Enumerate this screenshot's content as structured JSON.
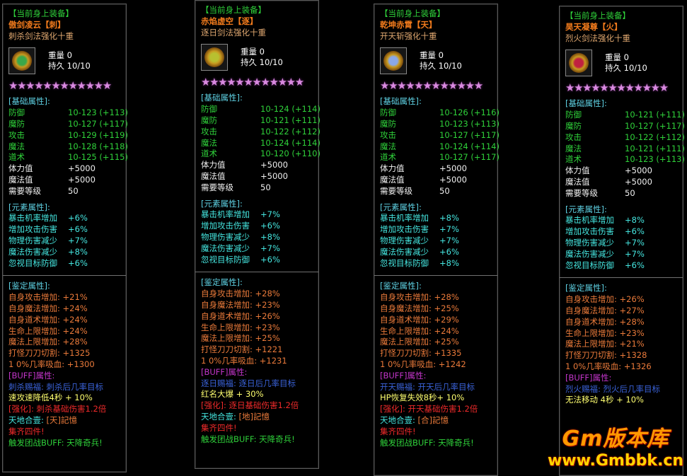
{
  "panels": [
    {
      "header": "【当前身上装备】",
      "name": "傲剑凌云【刺】",
      "subtitle": "刺杀剑法强化十重",
      "gem_color": "#3aa84a",
      "weight_label": "重量",
      "weight": "0",
      "durability_label": "持久",
      "durability": "10/10",
      "stars": 12,
      "base_title": "[基础属性]:",
      "base": [
        {
          "label": "防御",
          "value": "10-123 (+113)"
        },
        {
          "label": "魔防",
          "value": "10-127 (+117)"
        },
        {
          "label": "攻击",
          "value": "10-129 (+119)"
        },
        {
          "label": "魔法",
          "value": "10-128 (+118)"
        },
        {
          "label": "道术",
          "value": "10-125 (+115)"
        }
      ],
      "stats": [
        {
          "label": "体力值",
          "value": "+5000"
        },
        {
          "label": "魔法值",
          "value": "+5000"
        },
        {
          "label": "需要等级",
          "value": "50"
        }
      ],
      "element_title": "[元素属性]:",
      "elements": [
        {
          "label": "暴击机率增加",
          "value": "+6%"
        },
        {
          "label": "增加攻击伤害",
          "value": "+6%"
        },
        {
          "label": "物理伤害减少",
          "value": "+7%"
        },
        {
          "label": "魔法伤害减少",
          "value": "+8%"
        },
        {
          "label": "忽视目标防御",
          "value": "+6%"
        }
      ],
      "ident_title": "[鉴定属性]:",
      "idents": [
        "自身攻击增加: +21%",
        "自身魔法增加: +24%",
        "自身道术增加: +24%",
        "生命上限增加: +24%",
        "魔法上限增加: +28%",
        "打怪刀刀切割: +1325",
        "1 0%几率吸血: +1300"
      ],
      "buff_title": "[BUFF]属性:",
      "blessing": "刺杀赐福: 刺杀后几率目标",
      "effect": "速攻速降低4秒 + 10%",
      "strengthen": "[强化]: 刺杀基础伤害1.2倍",
      "combo_label": "天地合壹: ",
      "combo_value": "[天]記憶",
      "set_text": "集齐四件!",
      "trigger": "触发团战BUFF: 天降奇兵!"
    },
    {
      "header": "【当前身上装备】",
      "name": "赤焰虚空【逐】",
      "subtitle": "逐日剑法强化十重",
      "gem_color": "#b8c030",
      "weight_label": "重量",
      "weight": "0",
      "durability_label": "持久",
      "durability": "10/10",
      "stars": 12,
      "base_title": "[基础属性]:",
      "base": [
        {
          "label": "防御",
          "value": "10-124 (+114)"
        },
        {
          "label": "魔防",
          "value": "10-121 (+111)"
        },
        {
          "label": "攻击",
          "value": "10-122 (+112)"
        },
        {
          "label": "魔法",
          "value": "10-124 (+114)"
        },
        {
          "label": "道术",
          "value": "10-120 (+110)"
        }
      ],
      "stats": [
        {
          "label": "体力值",
          "value": "+5000"
        },
        {
          "label": "魔法值",
          "value": "+5000"
        },
        {
          "label": "需要等级",
          "value": "50"
        }
      ],
      "element_title": "[元素属性]:",
      "elements": [
        {
          "label": "暴击机率增加",
          "value": "+7%"
        },
        {
          "label": "增加攻击伤害",
          "value": "+6%"
        },
        {
          "label": "物理伤害减少",
          "value": "+8%"
        },
        {
          "label": "魔法伤害减少",
          "value": "+7%"
        },
        {
          "label": "忽视目标防御",
          "value": "+6%"
        }
      ],
      "ident_title": "[鉴定属性]:",
      "idents": [
        "自身攻击增加: +28%",
        "自身魔法增加: +23%",
        "自身道术增加: +26%",
        "生命上限增加: +23%",
        "魔法上限增加: +25%",
        "打怪刀刀切割: +1221",
        "1 0%几率吸血: +1231"
      ],
      "buff_title": "[BUFF]属性:",
      "blessing": "逐日赐福: 逐日后几率目标",
      "effect": "红名大爆 + 30%",
      "strengthen": "[强化]: 逐日基础伤害1.2倍",
      "combo_label": "天地合壹: ",
      "combo_value": "[地]記憶",
      "set_text": "集齐四件!",
      "trigger": "触发团战BUFF: 天降奇兵!"
    },
    {
      "header": "【当前身上装备】",
      "name": "乾坤赤霄【天】",
      "subtitle": "开天斩强化十重",
      "gem_color": "#8aa8e8",
      "weight_label": "重量",
      "weight": "0",
      "durability_label": "持久",
      "durability": "10/10",
      "stars": 12,
      "base_title": "[基础属性]:",
      "base": [
        {
          "label": "防御",
          "value": "10-126 (+116)"
        },
        {
          "label": "魔防",
          "value": "10-123 (+113)"
        },
        {
          "label": "攻击",
          "value": "10-127 (+117)"
        },
        {
          "label": "魔法",
          "value": "10-124 (+114)"
        },
        {
          "label": "道术",
          "value": "10-127 (+117)"
        }
      ],
      "stats": [
        {
          "label": "体力值",
          "value": "+5000"
        },
        {
          "label": "魔法值",
          "value": "+5000"
        },
        {
          "label": "需要等级",
          "value": "50"
        }
      ],
      "element_title": "[元素属性]:",
      "elements": [
        {
          "label": "暴击机率增加",
          "value": "+8%"
        },
        {
          "label": "增加攻击伤害",
          "value": "+7%"
        },
        {
          "label": "物理伤害减少",
          "value": "+7%"
        },
        {
          "label": "魔法伤害减少",
          "value": "+6%"
        },
        {
          "label": "忽视目标防御",
          "value": "+8%"
        }
      ],
      "ident_title": "[鉴定属性]:",
      "idents": [
        "自身攻击增加: +28%",
        "自身魔法增加: +25%",
        "自身道术增加: +29%",
        "生命上限增加: +24%",
        "魔法上限增加: +25%",
        "打怪刀刀切割: +1335",
        "1 0%几率吸血: +1242"
      ],
      "buff_title": "[BUFF]属性:",
      "blessing": "开天赐福: 开天后几率目标",
      "effect": "HP恢复失效8秒+ 10%",
      "strengthen": "[强化]: 开天基础伤害1.2倍",
      "combo_label": "天地合壹: ",
      "combo_value": "[合]記憶",
      "set_text": "集齐四件!",
      "trigger": "触发团战BUFF: 天降奇兵!"
    },
    {
      "header": "【当前身上装备】",
      "name": "昊天凝尊【火】",
      "subtitle": "烈火剑法强化十重",
      "gem_color": "#c02040",
      "weight_label": "重量",
      "weight": "0",
      "durability_label": "持久",
      "durability": "10/10",
      "stars": 12,
      "base_title": "[基础属性]:",
      "base": [
        {
          "label": "防御",
          "value": "10-121 (+111)"
        },
        {
          "label": "魔防",
          "value": "10-127 (+117)"
        },
        {
          "label": "攻击",
          "value": "10-122 (+112)"
        },
        {
          "label": "魔法",
          "value": "10-121 (+111)"
        },
        {
          "label": "道术",
          "value": "10-123 (+113)"
        }
      ],
      "stats": [
        {
          "label": "体力值",
          "value": "+5000"
        },
        {
          "label": "魔法值",
          "value": "+5000"
        },
        {
          "label": "需要等级",
          "value": "50"
        }
      ],
      "element_title": "[元素属性]:",
      "elements": [
        {
          "label": "暴击机率增加",
          "value": "+8%"
        },
        {
          "label": "增加攻击伤害",
          "value": "+6%"
        },
        {
          "label": "物理伤害减少",
          "value": "+7%"
        },
        {
          "label": "魔法伤害减少",
          "value": "+7%"
        },
        {
          "label": "忽视目标防御",
          "value": "+6%"
        }
      ],
      "ident_title": "[鉴定属性]:",
      "idents": [
        "自身攻击增加: +26%",
        "自身魔法增加: +27%",
        "自身道术增加: +28%",
        "生命上限增加: +23%",
        "魔法上限增加: +21%",
        "打怪刀刀切割: +1328",
        "1 0%几率吸血: +1326"
      ],
      "buff_title": "[BUFF]属性:",
      "blessing": "烈火赐福: 烈火后几率目标",
      "effect": "无法移动 4秒 + 10%"
    }
  ],
  "watermark": {
    "logo": "Gm版本库",
    "url": "www.Gmbbk.cn"
  }
}
